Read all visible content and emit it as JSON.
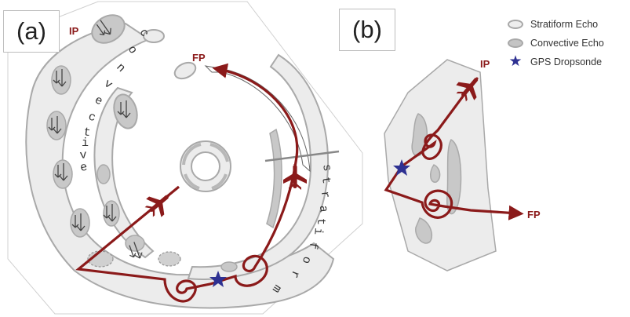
{
  "panels": {
    "a": "(a)",
    "b": "(b)"
  },
  "legend": [
    {
      "label": "Stratiform Echo",
      "symbol": "stratiform-echo"
    },
    {
      "label": "Convective Echo",
      "symbol": "convective-echo"
    },
    {
      "label": "GPS Dropsonde",
      "symbol": "dropsonde-star"
    }
  ],
  "panel_a": {
    "ip": "IP",
    "fp": "FP",
    "convective_letters": [
      "c",
      "o",
      "n",
      "v",
      "e",
      "c",
      "t",
      "i",
      "v",
      "e"
    ],
    "stratiform_letters": [
      "s",
      "t",
      "r",
      "a",
      "t",
      "i",
      "f",
      "o",
      "r",
      "m"
    ]
  },
  "panel_b": {
    "ip": "IP",
    "fp": "FP"
  },
  "colors": {
    "flight_track": "#8b1a1a",
    "dropsonde": "#2e3192",
    "stratiform_fill": "#ececec",
    "convective_fill": "#c8c8c8",
    "outline": "#a9a9a9"
  }
}
